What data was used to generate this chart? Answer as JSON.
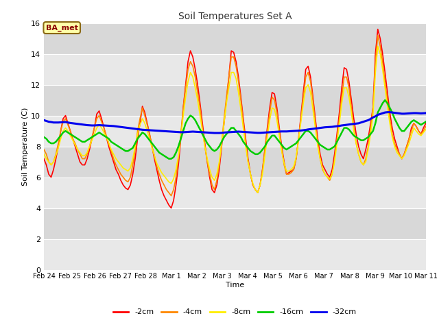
{
  "title": "Soil Temperatures Set A",
  "xlabel": "Time",
  "ylabel": "Soil Temperature (C)",
  "ylim": [
    0,
    16
  ],
  "yticks": [
    0,
    2,
    4,
    6,
    8,
    10,
    12,
    14,
    16
  ],
  "annotation_text": "BA_met",
  "annotation_bg": "#ffffaa",
  "annotation_border": "#8b6914",
  "annotation_text_color": "#8b0000",
  "colors": {
    "-2cm": "#ff0000",
    "-4cm": "#ff8800",
    "-8cm": "#ffee00",
    "-16cm": "#00cc00",
    "-32cm": "#0000ee"
  },
  "line_widths": {
    "-2cm": 1.2,
    "-4cm": 1.2,
    "-8cm": 1.2,
    "-16cm": 1.8,
    "-32cm": 2.2
  },
  "x_tick_labels": [
    "Feb 24",
    "Feb 25",
    "Feb 26",
    "Feb 27",
    "Feb 28",
    "Mar 1",
    "Mar 2",
    "Mar 3",
    "Mar 4",
    "Mar 5",
    "Mar 6",
    "Mar 7",
    "Mar 8",
    "Mar 9",
    "Mar 10",
    "Mar 11"
  ],
  "num_points": 160,
  "band_colors": [
    "#e0e0e0",
    "#d0d0d0"
  ],
  "series": {
    "-2cm": [
      7.2,
      6.8,
      6.2,
      6.0,
      6.5,
      7.2,
      8.0,
      9.0,
      9.8,
      10.0,
      9.5,
      9.0,
      8.5,
      8.0,
      7.5,
      7.0,
      6.8,
      6.8,
      7.2,
      7.8,
      8.5,
      9.2,
      10.1,
      10.3,
      9.8,
      9.2,
      8.6,
      8.0,
      7.5,
      7.0,
      6.5,
      6.2,
      5.8,
      5.5,
      5.3,
      5.2,
      5.5,
      6.2,
      7.2,
      8.5,
      9.5,
      10.6,
      10.2,
      9.5,
      8.8,
      8.0,
      7.2,
      6.5,
      5.8,
      5.2,
      4.8,
      4.5,
      4.2,
      4.0,
      4.5,
      5.5,
      6.8,
      8.5,
      10.5,
      12.0,
      13.5,
      14.2,
      13.8,
      13.0,
      12.0,
      10.8,
      9.5,
      8.2,
      7.0,
      6.0,
      5.2,
      5.0,
      5.5,
      6.5,
      8.0,
      9.5,
      11.0,
      12.5,
      14.2,
      14.1,
      13.5,
      12.5,
      11.2,
      9.8,
      8.5,
      7.2,
      6.2,
      5.5,
      5.2,
      5.0,
      5.5,
      6.5,
      7.8,
      9.2,
      10.5,
      11.5,
      11.4,
      10.5,
      9.2,
      8.0,
      7.0,
      6.2,
      6.3,
      6.4,
      6.5,
      7.2,
      8.5,
      10.0,
      11.5,
      13.0,
      13.2,
      12.5,
      11.2,
      9.8,
      8.5,
      7.5,
      6.8,
      6.5,
      6.2,
      6.0,
      6.5,
      7.5,
      8.8,
      10.2,
      11.8,
      13.1,
      13.0,
      12.2,
      11.0,
      9.8,
      8.8,
      8.0,
      7.5,
      7.2,
      7.8,
      8.5,
      9.5,
      10.5,
      14.0,
      15.6,
      15.0,
      14.0,
      12.8,
      11.5,
      10.2,
      9.2,
      8.5,
      8.0,
      7.5,
      7.2,
      7.5,
      8.0,
      8.5,
      9.2,
      9.5,
      9.3,
      9.0,
      8.8,
      9.2,
      9.5
    ],
    "-4cm": [
      7.8,
      7.5,
      7.0,
      6.8,
      7.0,
      7.5,
      8.2,
      9.0,
      9.6,
      9.8,
      9.4,
      9.0,
      8.5,
      8.2,
      7.8,
      7.5,
      7.2,
      7.2,
      7.5,
      8.0,
      8.6,
      9.2,
      9.8,
      10.0,
      9.6,
      9.2,
      8.7,
      8.2,
      7.7,
      7.2,
      6.8,
      6.5,
      6.2,
      6.0,
      5.8,
      5.7,
      6.0,
      6.8,
      7.8,
      9.0,
      9.8,
      10.5,
      10.0,
      9.4,
      8.8,
      8.0,
      7.4,
      6.7,
      6.2,
      5.8,
      5.5,
      5.2,
      5.0,
      4.8,
      5.2,
      6.0,
      7.2,
      8.8,
      10.5,
      11.8,
      13.0,
      13.5,
      13.2,
      12.5,
      11.5,
      10.5,
      9.2,
      8.0,
      7.0,
      6.2,
      5.5,
      5.2,
      5.8,
      6.8,
      8.2,
      9.8,
      11.2,
      12.5,
      13.8,
      13.8,
      13.2,
      12.2,
      11.0,
      9.6,
      8.2,
      7.0,
      6.2,
      5.5,
      5.2,
      5.0,
      5.5,
      6.5,
      7.8,
      9.0,
      10.2,
      11.2,
      11.0,
      10.2,
      9.0,
      7.8,
      6.8,
      6.2,
      6.2,
      6.3,
      6.5,
      7.2,
      8.5,
      9.8,
      11.2,
      12.5,
      12.8,
      12.2,
      11.0,
      9.5,
      8.2,
      7.2,
      6.5,
      6.2,
      6.0,
      5.8,
      6.2,
      7.2,
      8.5,
      9.8,
      11.2,
      12.5,
      12.5,
      11.8,
      10.5,
      9.2,
      8.2,
      7.5,
      7.0,
      6.8,
      7.2,
      8.0,
      9.2,
      10.5,
      13.5,
      15.2,
      14.5,
      13.5,
      12.2,
      11.0,
      9.8,
      8.8,
      8.2,
      7.8,
      7.5,
      7.2,
      7.5,
      8.0,
      8.5,
      9.0,
      9.5,
      9.3,
      9.0,
      8.8,
      9.0,
      9.3
    ],
    "-8cm": [
      7.5,
      7.2,
      7.0,
      6.8,
      7.0,
      7.4,
      7.9,
      8.5,
      9.0,
      9.2,
      9.0,
      8.7,
      8.4,
      8.1,
      7.8,
      7.6,
      7.4,
      7.4,
      7.6,
      8.0,
      8.4,
      8.8,
      9.2,
      9.4,
      9.2,
      8.9,
      8.6,
      8.2,
      7.8,
      7.5,
      7.2,
      7.0,
      6.8,
      6.6,
      6.5,
      6.4,
      6.6,
      7.2,
      8.0,
      8.8,
      9.4,
      9.8,
      9.5,
      9.0,
      8.5,
      7.9,
      7.4,
      6.9,
      6.6,
      6.3,
      6.1,
      5.9,
      5.7,
      5.6,
      5.9,
      6.5,
      7.4,
      8.6,
      10.0,
      11.2,
      12.2,
      12.8,
      12.5,
      11.8,
      11.0,
      10.0,
      9.0,
      8.0,
      7.2,
      6.5,
      6.0,
      5.8,
      6.2,
      7.0,
      8.2,
      9.5,
      10.8,
      11.8,
      12.8,
      12.8,
      12.4,
      11.5,
      10.4,
      9.2,
      8.0,
      7.0,
      6.2,
      5.6,
      5.2,
      5.0,
      5.5,
      6.2,
      7.4,
      8.6,
      9.7,
      10.5,
      10.4,
      9.7,
      8.7,
      7.7,
      6.9,
      6.4,
      6.4,
      6.5,
      6.7,
      7.3,
      8.4,
      9.6,
      10.8,
      11.8,
      12.0,
      11.5,
      10.4,
      9.2,
      8.0,
      7.2,
      6.6,
      6.2,
      6.0,
      5.9,
      6.2,
      7.0,
      8.2,
      9.5,
      10.8,
      11.8,
      11.8,
      11.2,
      10.2,
      9.0,
      8.2,
      7.5,
      7.0,
      6.8,
      7.0,
      7.8,
      8.8,
      10.0,
      12.8,
      14.5,
      14.0,
      13.0,
      11.8,
      10.6,
      9.5,
      8.6,
      8.0,
      7.6,
      7.4,
      7.2,
      7.4,
      7.8,
      8.2,
      8.7,
      9.2,
      9.0,
      8.8,
      8.7,
      8.9,
      9.1
    ],
    "-16cm": [
      8.6,
      8.5,
      8.3,
      8.2,
      8.2,
      8.3,
      8.5,
      8.7,
      8.9,
      9.0,
      8.9,
      8.8,
      8.7,
      8.6,
      8.5,
      8.4,
      8.3,
      8.3,
      8.4,
      8.5,
      8.6,
      8.7,
      8.8,
      8.9,
      8.8,
      8.7,
      8.6,
      8.5,
      8.3,
      8.2,
      8.1,
      8.0,
      7.9,
      7.8,
      7.7,
      7.7,
      7.8,
      7.9,
      8.2,
      8.5,
      8.7,
      8.9,
      8.8,
      8.6,
      8.4,
      8.2,
      8.0,
      7.8,
      7.6,
      7.5,
      7.4,
      7.3,
      7.2,
      7.2,
      7.3,
      7.6,
      8.0,
      8.5,
      9.0,
      9.5,
      9.8,
      10.0,
      9.9,
      9.7,
      9.4,
      9.1,
      8.8,
      8.5,
      8.2,
      8.0,
      7.8,
      7.7,
      7.8,
      8.0,
      8.3,
      8.6,
      8.8,
      9.0,
      9.2,
      9.2,
      9.0,
      8.8,
      8.6,
      8.3,
      8.1,
      7.9,
      7.7,
      7.6,
      7.5,
      7.5,
      7.6,
      7.8,
      8.0,
      8.3,
      8.5,
      8.7,
      8.7,
      8.5,
      8.3,
      8.1,
      7.9,
      7.8,
      7.9,
      8.0,
      8.1,
      8.2,
      8.4,
      8.6,
      8.8,
      9.0,
      9.0,
      8.9,
      8.7,
      8.5,
      8.3,
      8.1,
      8.0,
      7.9,
      7.8,
      7.8,
      7.9,
      8.0,
      8.3,
      8.6,
      8.9,
      9.2,
      9.2,
      9.1,
      8.9,
      8.7,
      8.6,
      8.5,
      8.4,
      8.4,
      8.5,
      8.6,
      8.8,
      9.0,
      9.5,
      10.2,
      10.5,
      10.8,
      11.0,
      10.8,
      10.5,
      10.2,
      9.8,
      9.5,
      9.2,
      9.0,
      9.0,
      9.2,
      9.4,
      9.6,
      9.7,
      9.6,
      9.5,
      9.4,
      9.5,
      9.6
    ],
    "-32cm": [
      9.7,
      9.65,
      9.6,
      9.58,
      9.55,
      9.55,
      9.55,
      9.56,
      9.57,
      9.58,
      9.55,
      9.52,
      9.5,
      9.48,
      9.46,
      9.44,
      9.42,
      9.4,
      9.38,
      9.37,
      9.36,
      9.36,
      9.37,
      9.38,
      9.37,
      9.36,
      9.35,
      9.34,
      9.33,
      9.32,
      9.3,
      9.28,
      9.26,
      9.24,
      9.22,
      9.2,
      9.18,
      9.16,
      9.14,
      9.12,
      9.1,
      9.08,
      9.07,
      9.06,
      9.05,
      9.04,
      9.03,
      9.02,
      9.01,
      9.0,
      8.99,
      8.98,
      8.97,
      8.96,
      8.95,
      8.94,
      8.93,
      8.92,
      8.92,
      8.93,
      8.94,
      8.95,
      8.96,
      8.95,
      8.94,
      8.93,
      8.92,
      8.91,
      8.9,
      8.89,
      8.88,
      8.87,
      8.87,
      8.87,
      8.88,
      8.9,
      8.91,
      8.92,
      8.93,
      8.94,
      8.95,
      8.96,
      8.95,
      8.94,
      8.93,
      8.92,
      8.91,
      8.9,
      8.89,
      8.88,
      8.88,
      8.89,
      8.9,
      8.91,
      8.92,
      8.93,
      8.94,
      8.95,
      8.96,
      8.97,
      8.97,
      8.97,
      8.98,
      8.99,
      9.0,
      9.01,
      9.02,
      9.03,
      9.05,
      9.07,
      9.1,
      9.12,
      9.14,
      9.16,
      9.18,
      9.2,
      9.22,
      9.24,
      9.25,
      9.26,
      9.27,
      9.29,
      9.31,
      9.33,
      9.36,
      9.38,
      9.4,
      9.42,
      9.44,
      9.46,
      9.48,
      9.5,
      9.55,
      9.6,
      9.65,
      9.7,
      9.78,
      9.88,
      9.95,
      10.05,
      10.1,
      10.15,
      10.2,
      10.22,
      10.22,
      10.2,
      10.18,
      10.16,
      10.14,
      10.12,
      10.12,
      10.13,
      10.14,
      10.15,
      10.16,
      10.16,
      10.15,
      10.14,
      10.15,
      10.16
    ]
  }
}
